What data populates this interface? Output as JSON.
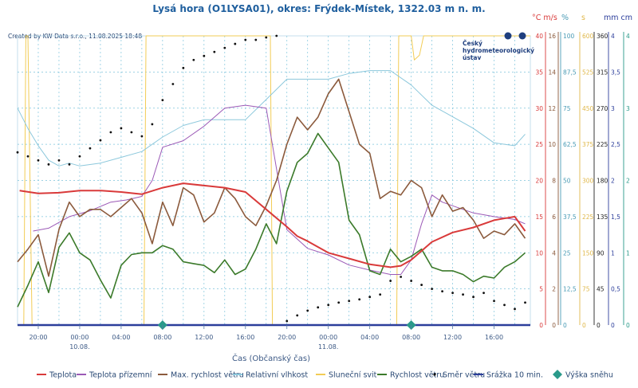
{
  "title": "Lysá hora (O1LYSA01), okres: Frýdek-Místek, 1322.03 m n. m.",
  "credit": "Created by KW Data s.r.o., 11.08.2025 18:48",
  "logo": {
    "line1": "Český",
    "line2": "hydrometeorologický",
    "line3": "ústav",
    "icon": "chmi-logo"
  },
  "xlabel": "Čas (Občanský čas)",
  "x_ticks": [
    "20:00",
    "00:00",
    "04:00",
    "08:00",
    "12:00",
    "16:00",
    "20:00",
    "00:00",
    "04:00",
    "08:00",
    "12:00",
    "16:00"
  ],
  "x_dates": [
    "10.08.",
    "11.08."
  ],
  "axis_units": [
    "°C m/s",
    "%",
    "s",
    "mm cm"
  ],
  "axes": [
    {
      "unit": "°C",
      "color": "#d93a3a",
      "ticks": [
        "40",
        "35",
        "30",
        "25",
        "20",
        "15",
        "10",
        "5",
        "0"
      ]
    },
    {
      "unit": "m/s",
      "color": "#8b5a3c",
      "ticks": [
        "16",
        "14",
        "12",
        "10",
        "8",
        "6",
        "4",
        "2",
        "0"
      ]
    },
    {
      "unit": "%",
      "color": "#4a9bb5",
      "ticks": [
        "100",
        "87,5",
        "75",
        "62,5",
        "50",
        "37,5",
        "25",
        "12,5",
        "0"
      ]
    },
    {
      "unit": "s",
      "color": "#e0b84a",
      "ticks": [
        "600",
        "525",
        "450",
        "375",
        "300",
        "225",
        "150",
        "75",
        "0"
      ]
    },
    {
      "unit": "°",
      "color": "#222222",
      "ticks": [
        "360",
        "315",
        "270",
        "225",
        "180",
        "135",
        "90",
        "45",
        "0"
      ]
    },
    {
      "unit": "mm",
      "color": "#2c3e9b",
      "ticks": [
        "4",
        "3,5",
        "3",
        "2,5",
        "2",
        "1,5",
        "1",
        "0,5",
        "0"
      ]
    },
    {
      "unit": "cm",
      "color": "#2a9a8a",
      "ticks": [
        "4",
        "3",
        "2",
        "1",
        "0"
      ]
    }
  ],
  "legend": [
    {
      "label": "Teplota",
      "color": "#d93a3a",
      "kind": "line"
    },
    {
      "label": "Teplota přízemní",
      "color": "#9b59b6",
      "kind": "line"
    },
    {
      "label": "Max. rychlost větru",
      "color": "#8b5a3c",
      "kind": "line"
    },
    {
      "label": "Relativní vlhkost",
      "color": "#8cc8dc",
      "kind": "line"
    },
    {
      "label": "Sluneční svit",
      "color": "#f2cc55",
      "kind": "line"
    },
    {
      "label": "Rychlost větru",
      "color": "#3b7a2a",
      "kind": "line"
    },
    {
      "label": "Směr větru",
      "color": "#111111",
      "kind": "dot"
    },
    {
      "label": "Srážka 10 min.",
      "color": "#2c3e9b",
      "kind": "line"
    },
    {
      "label": "Výška sněhu",
      "color": "#2a9a8a",
      "kind": "diamond"
    }
  ],
  "chart_data": {
    "type": "line",
    "x_unit": "hours since 10.08. 00:00",
    "xlim": [
      -6,
      43.5
    ],
    "series": [
      {
        "name": "Teplota",
        "axis": "°C",
        "color": "#d93a3a",
        "x": [
          -5.8,
          -4,
          -2,
          0,
          2,
          4,
          6,
          8,
          10,
          12,
          14,
          16,
          18,
          20,
          21,
          22,
          23,
          24,
          26,
          28,
          30,
          31,
          32,
          34,
          36,
          38,
          40,
          42,
          43
        ],
        "y": [
          18.6,
          18.2,
          18.3,
          18.6,
          18.6,
          18.4,
          18.1,
          19.0,
          19.6,
          19.3,
          19.0,
          18.4,
          16.0,
          13.6,
          12.3,
          11.6,
          10.8,
          10.0,
          9.2,
          8.4,
          8.0,
          8.2,
          9.0,
          11.5,
          12.8,
          13.5,
          14.5,
          15.0,
          13.0
        ]
      },
      {
        "name": "Teplota přízemní",
        "axis": "°C",
        "color": "#9b59b6",
        "x": [
          -4.5,
          -3,
          -1,
          1,
          3,
          4.5,
          6,
          7,
          8,
          10,
          12,
          14,
          16,
          18,
          20,
          22,
          24,
          26,
          28,
          30,
          31,
          32,
          33,
          34,
          35,
          36,
          38,
          40,
          42,
          43
        ],
        "y": [
          13.0,
          13.4,
          15.0,
          15.8,
          17.0,
          17.3,
          17.8,
          20.0,
          24.6,
          25.5,
          27.5,
          30.0,
          30.4,
          30.0,
          13.2,
          10.6,
          9.7,
          8.3,
          7.6,
          7.0,
          7.0,
          9.0,
          14.0,
          18.0,
          17.0,
          16.5,
          15.5,
          15.0,
          14.6,
          14.0
        ]
      },
      {
        "name": "Max. rychlost větru",
        "axis": "m/s",
        "color": "#8b5a3c",
        "x": [
          -6,
          -5,
          -4,
          -3,
          -2,
          -1,
          0,
          1,
          2,
          3,
          4,
          5,
          6,
          7,
          8,
          9,
          10,
          11,
          12,
          13,
          14,
          15,
          16,
          17,
          18,
          19,
          20,
          21,
          22,
          23,
          24,
          25,
          26,
          27,
          28,
          29,
          30,
          31,
          32,
          33,
          34,
          35,
          36,
          37,
          38,
          39,
          40,
          41,
          42,
          43
        ],
        "y": [
          3.5,
          4.2,
          5.0,
          2.7,
          5.3,
          6.8,
          6.0,
          6.4,
          6.4,
          6.0,
          6.5,
          7.0,
          6.2,
          4.5,
          6.8,
          5.5,
          7.6,
          7.2,
          5.7,
          6.2,
          7.6,
          7.0,
          6.0,
          5.5,
          6.6,
          8.0,
          10.0,
          11.5,
          10.8,
          11.5,
          12.8,
          13.6,
          11.8,
          10.0,
          9.5,
          7.0,
          7.4,
          7.2,
          8.0,
          7.6,
          6.0,
          7.2,
          6.3,
          6.5,
          5.8,
          4.8,
          5.2,
          5.0,
          5.6,
          4.8
        ]
      },
      {
        "name": "Relativní vlhkost",
        "axis": "%",
        "color": "#8cc8dc",
        "x": [
          -6,
          -5,
          -4,
          -3,
          -2,
          -1,
          0,
          2,
          4,
          6,
          8,
          10,
          12,
          14,
          16,
          18,
          20,
          22,
          24,
          26,
          28,
          30,
          32,
          34,
          36,
          38,
          40,
          42,
          43
        ],
        "y": [
          75,
          68,
          62,
          57,
          55,
          56,
          55,
          56,
          58,
          60,
          65,
          69,
          71,
          71,
          71,
          78,
          85,
          85,
          85,
          87,
          88,
          88,
          83,
          76,
          72,
          68,
          63,
          62,
          66
        ]
      },
      {
        "name": "Sluneční svit",
        "axis": "s",
        "color": "#f2cc55",
        "x": [
          -6,
          -5.4,
          -5.2,
          -5,
          -4.6,
          -4.5,
          6.2,
          6.4,
          18.4,
          18.6,
          30.6,
          30.8,
          32,
          32.3,
          32.8,
          33.2,
          34,
          43.5
        ],
        "y": [
          0,
          0,
          600,
          600,
          0,
          0,
          0,
          600,
          600,
          0,
          0,
          600,
          600,
          550,
          560,
          600,
          600,
          600
        ]
      },
      {
        "name": "Rychlost větru",
        "axis": "m/s",
        "color": "#3b7a2a",
        "x": [
          -6,
          -5,
          -4,
          -3,
          -2,
          -1,
          0,
          1,
          2,
          3,
          4,
          5,
          6,
          7,
          8,
          9,
          10,
          11,
          12,
          13,
          14,
          15,
          16,
          17,
          18,
          19,
          20,
          21,
          22,
          23,
          24,
          25,
          26,
          27,
          28,
          29,
          30,
          31,
          32,
          33,
          34,
          35,
          36,
          37,
          38,
          39,
          40,
          41,
          42,
          43
        ],
        "y": [
          1.0,
          2.2,
          3.5,
          1.8,
          4.3,
          5.1,
          4.0,
          3.6,
          2.5,
          1.5,
          3.3,
          3.9,
          4.0,
          4.0,
          4.4,
          4.2,
          3.5,
          3.4,
          3.3,
          2.9,
          3.6,
          2.8,
          3.1,
          4.2,
          5.6,
          4.5,
          7.4,
          9.0,
          9.5,
          10.6,
          9.8,
          9.0,
          5.8,
          5.0,
          3.0,
          2.8,
          4.2,
          3.5,
          3.8,
          4.2,
          3.2,
          3.0,
          3.0,
          2.8,
          2.4,
          2.7,
          2.6,
          3.2,
          3.5,
          4.0
        ]
      },
      {
        "name": "Směr větru",
        "axis": "°",
        "color": "#111111",
        "kind": "dots",
        "x": [
          -6,
          -5,
          -4,
          -3,
          -2,
          -1,
          0,
          1,
          2,
          3,
          4,
          5,
          6,
          7,
          8,
          9,
          10,
          11,
          12,
          13,
          14,
          15,
          16,
          17,
          18,
          19,
          20,
          21,
          22,
          23,
          24,
          25,
          26,
          27,
          28,
          29,
          30,
          31,
          32,
          33,
          34,
          35,
          36,
          37,
          38,
          39,
          40,
          41,
          42,
          43
        ],
        "y": [
          215,
          210,
          205,
          200,
          205,
          200,
          210,
          220,
          230,
          240,
          245,
          240,
          235,
          250,
          280,
          300,
          320,
          330,
          335,
          340,
          345,
          350,
          355,
          355,
          358,
          360,
          5,
          12,
          18,
          22,
          25,
          28,
          30,
          32,
          35,
          38,
          55,
          60,
          55,
          50,
          45,
          42,
          40,
          38,
          35,
          40,
          30,
          25,
          20,
          28
        ]
      },
      {
        "name": "Srážka 10 min.",
        "axis": "mm",
        "color": "#2c3e9b",
        "x": [
          -6,
          43.5
        ],
        "y": [
          0,
          0
        ]
      },
      {
        "name": "Výška sněhu",
        "axis": "cm",
        "color": "#2a9a8a",
        "kind": "markers",
        "x": [
          8,
          32
        ],
        "y": [
          0,
          0
        ]
      }
    ]
  }
}
